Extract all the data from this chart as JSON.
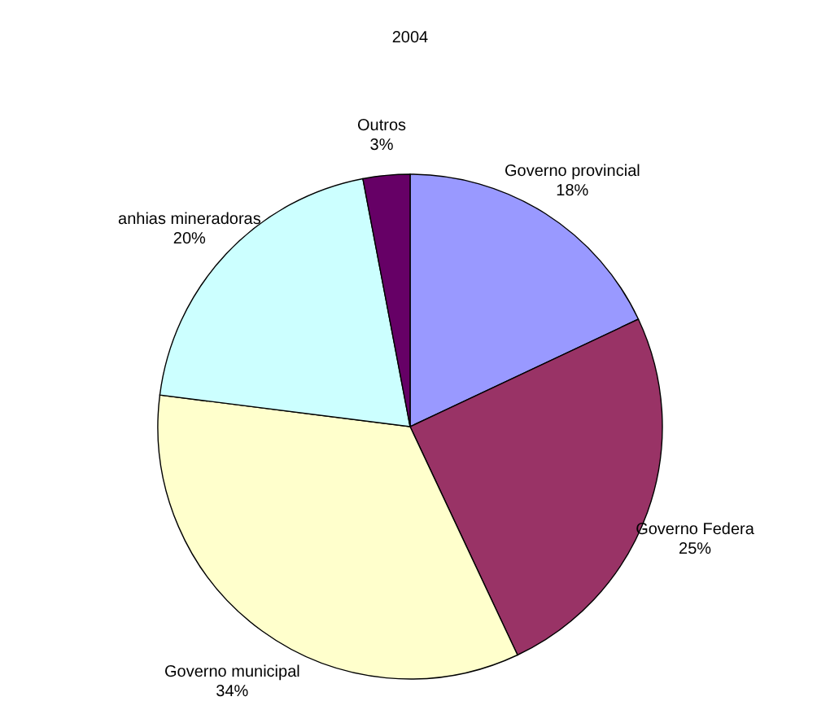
{
  "chart_data": {
    "type": "pie",
    "title": "2004",
    "categories": [
      "Governo provincial",
      "Governo Federa",
      "Governo municipal",
      "anhias mineradoras",
      "Outros"
    ],
    "values": [
      18,
      25,
      34,
      20,
      3
    ],
    "value_labels": [
      "18%",
      "25%",
      "34%",
      "20%",
      "3%"
    ],
    "colors": [
      "#9999ff",
      "#993366",
      "#ffffcc",
      "#ccffff",
      "#660066"
    ],
    "legend": false
  }
}
